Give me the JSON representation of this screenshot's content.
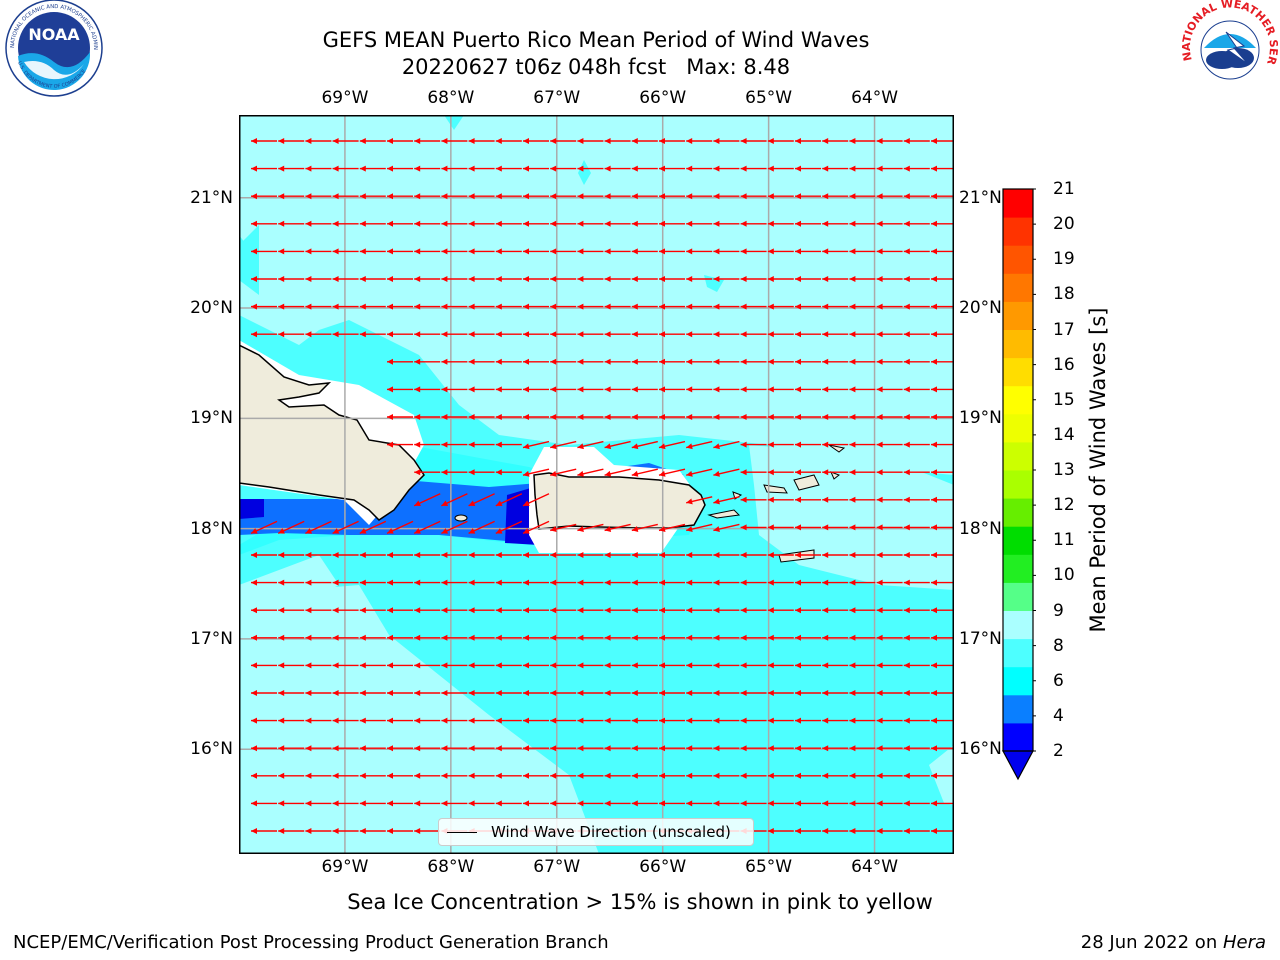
{
  "title": {
    "line1": "GEFS MEAN Puerto Rico Mean Period of Wind Waves",
    "line2": "20220627 t06z 048h fcst   Max: 8.48"
  },
  "logos": {
    "left": "noara-logo",
    "left_text": "NOAA",
    "left_ring_text": "NATIONAL OCEANIC AND ATMOSPHERIC ADMINISTRATION",
    "left_ring_bottom": "U.S. DEPARTMENT OF COMMERCE",
    "right": "nws-logo",
    "right_ring_text": "NATIONAL WEATHER SERVICE"
  },
  "map": {
    "longitude_labels": [
      "69°W",
      "68°W",
      "67°W",
      "66°W",
      "65°W",
      "64°W"
    ],
    "latitude_labels": [
      "21°N",
      "20°N",
      "19°N",
      "18°N",
      "17°N",
      "16°N"
    ],
    "longitudes": [
      -69,
      -68,
      -67,
      -66,
      -65,
      -64
    ],
    "latitudes": [
      21,
      20,
      19,
      18,
      17,
      16
    ],
    "lon_range": [
      -70,
      -63.25
    ],
    "lat_range": [
      15.05,
      21.75
    ],
    "colors": {
      "ocean_6_8": "#4dffff",
      "ocean_8_9": "#aaffff",
      "shallow_4_6": "#00ffff",
      "band_2_4": "#0d70ff",
      "band_lt_2": "#0000e0",
      "land": "#efecdc",
      "arrow": "#ff0000",
      "grid": "#aaaaaa"
    },
    "wind_direction": "east-to-west"
  },
  "legend": {
    "label": "Wind Wave Direction (unscaled)"
  },
  "colorbar": {
    "label": "Mean Period of Wind Waves [s]",
    "ticks": [
      "21",
      "20",
      "19",
      "18",
      "17",
      "16",
      "15",
      "14",
      "13",
      "12",
      "11",
      "10",
      "9",
      "8",
      "6",
      "4",
      "2"
    ],
    "colors": [
      "#0000ff",
      "#0a7fff",
      "#00ffff",
      "#4dffff",
      "#aaffff",
      "#55ff88",
      "#22ee22",
      "#00dd00",
      "#66ee00",
      "#aaff00",
      "#ccff00",
      "#eeff00",
      "#ffff00",
      "#ffdd00",
      "#ffbb00",
      "#ff9900",
      "#ff7700",
      "#ff5500",
      "#ff3300",
      "#ff0000"
    ]
  },
  "note": "Sea Ice Concentration > 15% is shown in pink to yellow",
  "footer": {
    "left": "NCEP/EMC/Verification Post Processing Product Generation Branch",
    "right_prefix": "28 Jun 2022 on ",
    "right_host": "Hera"
  }
}
